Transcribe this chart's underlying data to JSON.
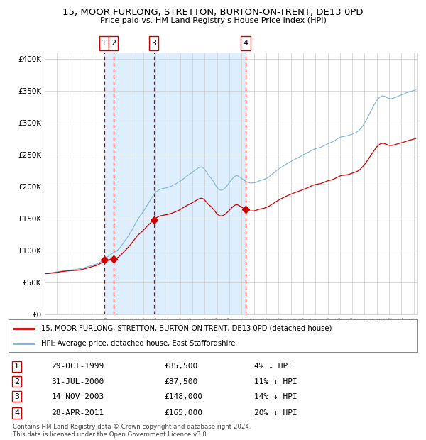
{
  "title": "15, MOOR FURLONG, STRETTON, BURTON-ON-TRENT, DE13 0PD",
  "subtitle": "Price paid vs. HM Land Registry's House Price Index (HPI)",
  "legend_line1": "15, MOOR FURLONG, STRETTON, BURTON-ON-TRENT, DE13 0PD (detached house)",
  "legend_line2": "HPI: Average price, detached house, East Staffordshire",
  "transactions": [
    {
      "num": "1",
      "date": "29-OCT-1999",
      "price": "£85,500",
      "pct": "4% ↓ HPI"
    },
    {
      "num": "2",
      "date": "31-JUL-2000",
      "price": "£87,500",
      "pct": "11% ↓ HPI"
    },
    {
      "num": "3",
      "date": "14-NOV-2003",
      "price": "£148,000",
      "pct": "14% ↓ HPI"
    },
    {
      "num": "4",
      "date": "28-APR-2011",
      "price": "£165,000",
      "pct": "20% ↓ HPI"
    }
  ],
  "transaction_years": [
    1999.83,
    2000.58,
    2003.87,
    2011.33
  ],
  "transaction_prices": [
    85500,
    87500,
    148000,
    165000
  ],
  "ylabel_ticks": [
    "£0",
    "£50K",
    "£100K",
    "£150K",
    "£200K",
    "£250K",
    "£300K",
    "£350K",
    "£400K"
  ],
  "ylabel_values": [
    0,
    50000,
    100000,
    150000,
    200000,
    250000,
    300000,
    350000,
    400000
  ],
  "hpi_color": "#7cb4d4",
  "price_color": "#cc0000",
  "shade_color": "#ddeeff",
  "grid_color": "#cccccc",
  "copyright_text": "Contains HM Land Registry data © Crown copyright and database right 2024.\nThis data is licensed under the Open Government Licence v3.0."
}
